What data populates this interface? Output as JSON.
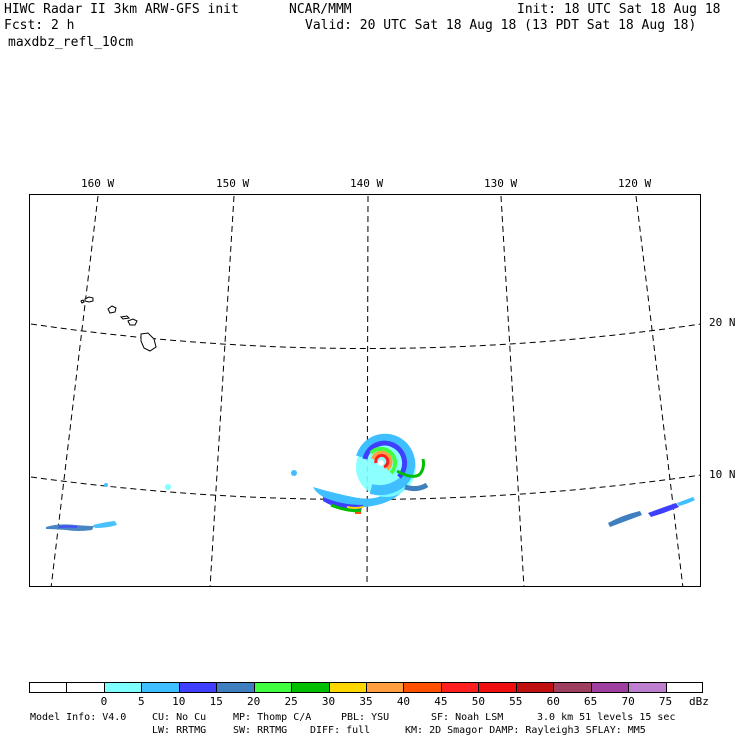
{
  "header": {
    "left_line1": "HIWC Radar II 3km ARW-GFS init",
    "org": "NCAR/MMM",
    "init": "Init: 18 UTC Sat 18 Aug 18",
    "fcst": "Fcst:    2 h",
    "valid": "Valid: 20 UTC Sat 18 Aug 18 (13 PDT Sat 18 Aug 18)",
    "field": "maxdbz_refl_10cm"
  },
  "map": {
    "lon_labels": [
      "160 W",
      "150 W",
      "140 W",
      "130 W",
      "120 W"
    ],
    "lat_labels": [
      "20 N",
      "10 N"
    ],
    "gridline_color": "#000000",
    "coastline_feature": "Hawaiian Islands",
    "storm_feature": "tropical cyclone reflectivity swirl"
  },
  "legend": {
    "colors": [
      "#ffffff",
      "#ffffff",
      "#7fffff",
      "#3fbfff",
      "#3f3fff",
      "#3f7fbf",
      "#3fff3f",
      "#00bf00",
      "#ffd700",
      "#ff9f3f",
      "#ff4f00",
      "#ff1f1f",
      "#ef0f0f",
      "#bf0f0f",
      "#9f3f5f",
      "#9f3f9f",
      "#bf7fcf",
      "#ffffff"
    ],
    "ticks": [
      "0",
      "5",
      "10",
      "15",
      "20",
      "25",
      "30",
      "35",
      "40",
      "45",
      "50",
      "55",
      "60",
      "65",
      "70",
      "75"
    ],
    "unit": "dBz"
  },
  "footer": {
    "line1": [
      "Model Info: V4.0",
      "CU: No Cu",
      "MP: Thomp C/A",
      "PBL: YSU",
      "SF: Noah LSM",
      "3.0 km  51 levels  15 sec"
    ],
    "line2": [
      "LW: RRTMG",
      "SW: RRTMG",
      "DIFF: full",
      "KM: 2D Smagor DAMP: Rayleigh3  SFLAY: MM5"
    ]
  }
}
